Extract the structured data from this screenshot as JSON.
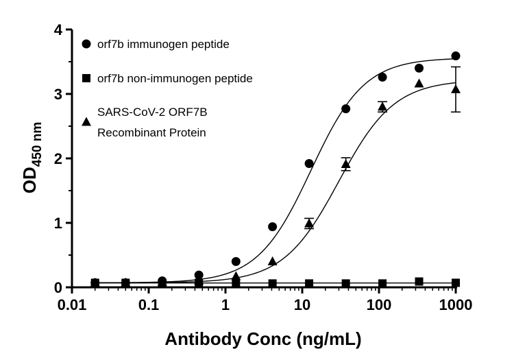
{
  "chart_data": {
    "type": "scatter",
    "title": "",
    "xlabel": "Antibody Conc (ng/mL)",
    "ylabel_main": "OD",
    "ylabel_sub": "450 nm",
    "xscale": "log",
    "xlim": [
      0.01,
      1000
    ],
    "ylim": [
      0,
      4
    ],
    "xticks": [
      "0.01",
      "0.1",
      "1",
      "10",
      "100",
      "1000"
    ],
    "yticks": [
      "0",
      "1",
      "2",
      "3",
      "4"
    ],
    "grid": false,
    "legend_position": "top-left",
    "series": [
      {
        "name": "orf7b immunogen peptide",
        "marker": "circle",
        "fit": "sigmoid",
        "x": [
          0.02,
          0.05,
          0.15,
          0.45,
          1.37,
          4.1,
          12.3,
          37,
          111,
          333,
          1000
        ],
        "y": [
          0.07,
          0.07,
          0.1,
          0.19,
          0.4,
          0.94,
          1.92,
          2.77,
          3.26,
          3.4,
          3.59
        ]
      },
      {
        "name": "orf7b non-immunogen peptide",
        "marker": "square",
        "fit": "flat",
        "x": [
          0.02,
          0.05,
          0.15,
          0.45,
          1.37,
          4.1,
          12.3,
          37,
          111,
          333,
          1000
        ],
        "y": [
          0.07,
          0.07,
          0.07,
          0.07,
          0.06,
          0.06,
          0.06,
          0.06,
          0.06,
          0.09,
          0.07
        ]
      },
      {
        "name": "SARS-CoV-2 ORF7B Recombinant Protein",
        "name_lines": [
          "SARS-CoV-2 ORF7B",
          "Recombinant Protein"
        ],
        "marker": "triangle",
        "fit": "sigmoid",
        "x": [
          0.02,
          0.05,
          0.15,
          0.45,
          1.37,
          4.1,
          12.3,
          37,
          111,
          333,
          1000
        ],
        "y": [
          0.07,
          0.07,
          0.08,
          0.1,
          0.17,
          0.4,
          0.99,
          1.91,
          2.8,
          3.16,
          3.07
        ],
        "error": [
          0,
          0,
          0,
          0,
          0,
          0,
          0.08,
          0.1,
          0.08,
          0,
          0.35
        ]
      }
    ]
  }
}
